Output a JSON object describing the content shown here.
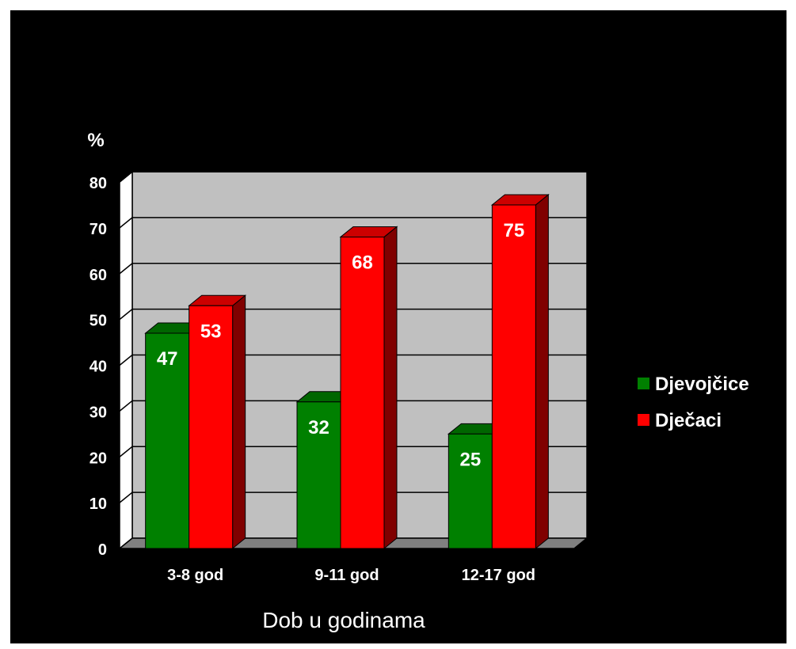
{
  "chart_data": {
    "type": "bar",
    "categories": [
      "3-8 god",
      "9-11 god",
      "12-17 god"
    ],
    "series": [
      {
        "name": "Djevojčice",
        "values": [
          47,
          32,
          25
        ],
        "color": "#008000"
      },
      {
        "name": "Dječaci",
        "values": [
          53,
          68,
          75
        ],
        "color": "#ff0000"
      }
    ],
    "ylabel": "%",
    "xlabel": "Dob u godinama",
    "ylim": [
      0,
      80
    ],
    "yticks": [
      0,
      10,
      20,
      30,
      40,
      50,
      60,
      70,
      80
    ],
    "grid": true,
    "legend_position": "right",
    "colors": {
      "background": "#000000",
      "plot_back": "#c0c0c0",
      "plot_side": "#ffffff",
      "floor": "#808080",
      "text": "#ffffff"
    }
  }
}
